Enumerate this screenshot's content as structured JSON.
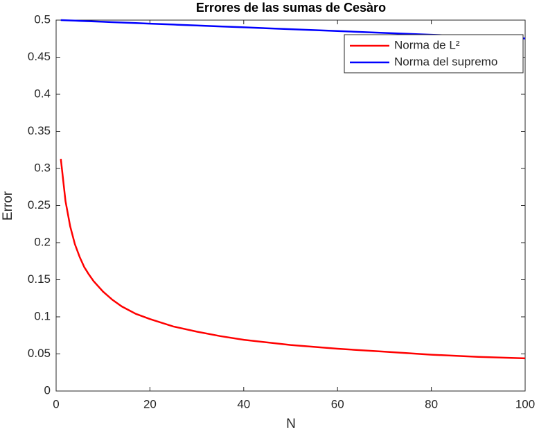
{
  "chart_data": {
    "type": "line",
    "title": "Errores de las sumas de Cesàro",
    "x_label": "N",
    "y_label": "Error",
    "x": [
      1,
      2,
      3,
      4,
      5,
      6,
      7,
      8,
      10,
      12,
      14,
      17,
      20,
      25,
      30,
      35,
      40,
      50,
      60,
      70,
      80,
      90,
      100
    ],
    "series": [
      {
        "name": "Norma de L²",
        "color": "#ff0000",
        "values": [
          0.313,
          0.256,
          0.222,
          0.198,
          0.181,
          0.167,
          0.157,
          0.148,
          0.134,
          0.123,
          0.114,
          0.104,
          0.097,
          0.087,
          0.08,
          0.074,
          0.069,
          0.062,
          0.057,
          0.053,
          0.049,
          0.046,
          0.044
        ]
      },
      {
        "name": "Norma del supremo",
        "color": "#0000ff",
        "values": [
          0.5,
          0.49975,
          0.4995,
          0.49925,
          0.499,
          0.49875,
          0.4985,
          0.49825,
          0.49775,
          0.49725,
          0.49675,
          0.496,
          0.49525,
          0.494,
          0.49275,
          0.4915,
          0.49025,
          0.48775,
          0.48525,
          0.48275,
          0.48025,
          0.47775,
          0.47525
        ]
      }
    ],
    "xlim": [
      0,
      100
    ],
    "xticks": [
      0,
      20,
      40,
      60,
      80,
      100
    ],
    "ylim": [
      0,
      0.5
    ],
    "yticks": [
      0,
      0.05,
      0.1,
      0.15,
      0.2,
      0.25,
      0.3,
      0.35,
      0.4,
      0.45,
      0.5
    ],
    "legend": "upper right"
  }
}
